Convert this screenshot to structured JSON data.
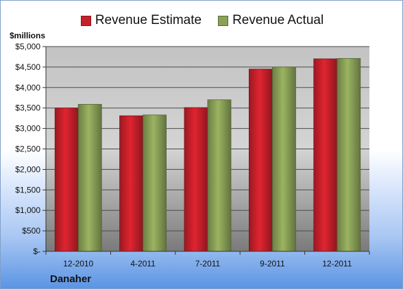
{
  "company": "Danaher",
  "unit_label": "$millions",
  "chart_data": {
    "type": "bar",
    "categories": [
      "12-2010",
      "4-2011",
      "7-2011",
      "9-2011",
      "12-2011"
    ],
    "series": [
      {
        "name": "Revenue Estimate",
        "color": "#c8202b",
        "values": [
          3500,
          3310,
          3510,
          4450,
          4700
        ]
      },
      {
        "name": "Revenue Actual",
        "color": "#8aa157",
        "values": [
          3590,
          3330,
          3700,
          4500,
          4710
        ]
      }
    ],
    "ylim": [
      0,
      5000
    ],
    "yticks": [
      0,
      500,
      1000,
      1500,
      2000,
      2500,
      3000,
      3500,
      4000,
      4500,
      5000
    ],
    "ytick_labels": [
      "$-",
      "$500",
      "$1,000",
      "$1,500",
      "$2,000",
      "$2,500",
      "$3,000",
      "$3,500",
      "$4,000",
      "$4,500",
      "$5,000"
    ],
    "grid": true,
    "legend": "top"
  }
}
